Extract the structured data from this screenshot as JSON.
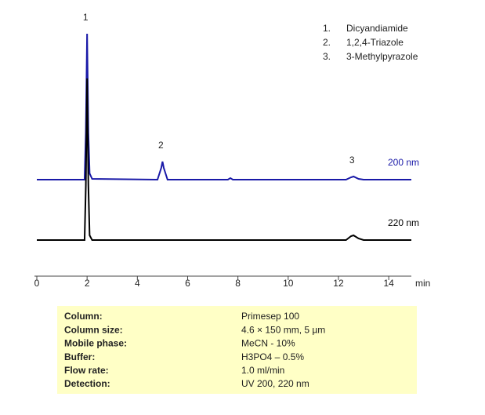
{
  "chart_data": {
    "type": "line",
    "x": [
      0,
      1.9,
      1.95,
      2.0,
      2.05,
      2.1,
      2.2,
      4.8,
      4.95,
      5.0,
      5.05,
      5.2,
      7.6,
      7.7,
      7.8,
      12.3,
      12.5,
      12.6,
      12.8,
      13.0,
      14.9
    ],
    "series": [
      {
        "name": "200 nm",
        "color": "#1a1aa8",
        "values": [
          0,
          0,
          60,
          186,
          60,
          8,
          1,
          0,
          15,
          23,
          15,
          0,
          0,
          2,
          0,
          0,
          3,
          4,
          1,
          0,
          0
        ]
      },
      {
        "name": "220 nm",
        "color": "#000000",
        "values": [
          0,
          0,
          70,
          206,
          70,
          6,
          0,
          0,
          0,
          0,
          0,
          0,
          0,
          0,
          0,
          0,
          5,
          6,
          2,
          0,
          0
        ]
      }
    ],
    "xlim": [
      0,
      14.9
    ],
    "xticks": [
      0,
      2,
      4,
      6,
      8,
      10,
      12,
      14
    ],
    "xlabel": "min",
    "annotations": [
      {
        "text": "1",
        "x": 2.0
      },
      {
        "text": "2",
        "x": 5.0
      },
      {
        "text": "3",
        "x": 12.6
      }
    ]
  },
  "compounds": [
    {
      "number": "1.",
      "name": "Dicyandiamide"
    },
    {
      "number": "2.",
      "name": "1,2,4-Triazole"
    },
    {
      "number": "3.",
      "name": "3-Methylpyrazole"
    }
  ],
  "conditions": [
    [
      "Column:",
      "Primesep 100"
    ],
    [
      "Column size:",
      "4.6 × 150 mm, 5 µm"
    ],
    [
      "Mobile phase:",
      "MeCN - 10%"
    ],
    [
      "Buffer:",
      "H3PO4 – 0.5%"
    ],
    [
      "Flow rate:",
      "1.0 ml/min"
    ],
    [
      "Detection:",
      "UV 200, 220 nm"
    ]
  ]
}
